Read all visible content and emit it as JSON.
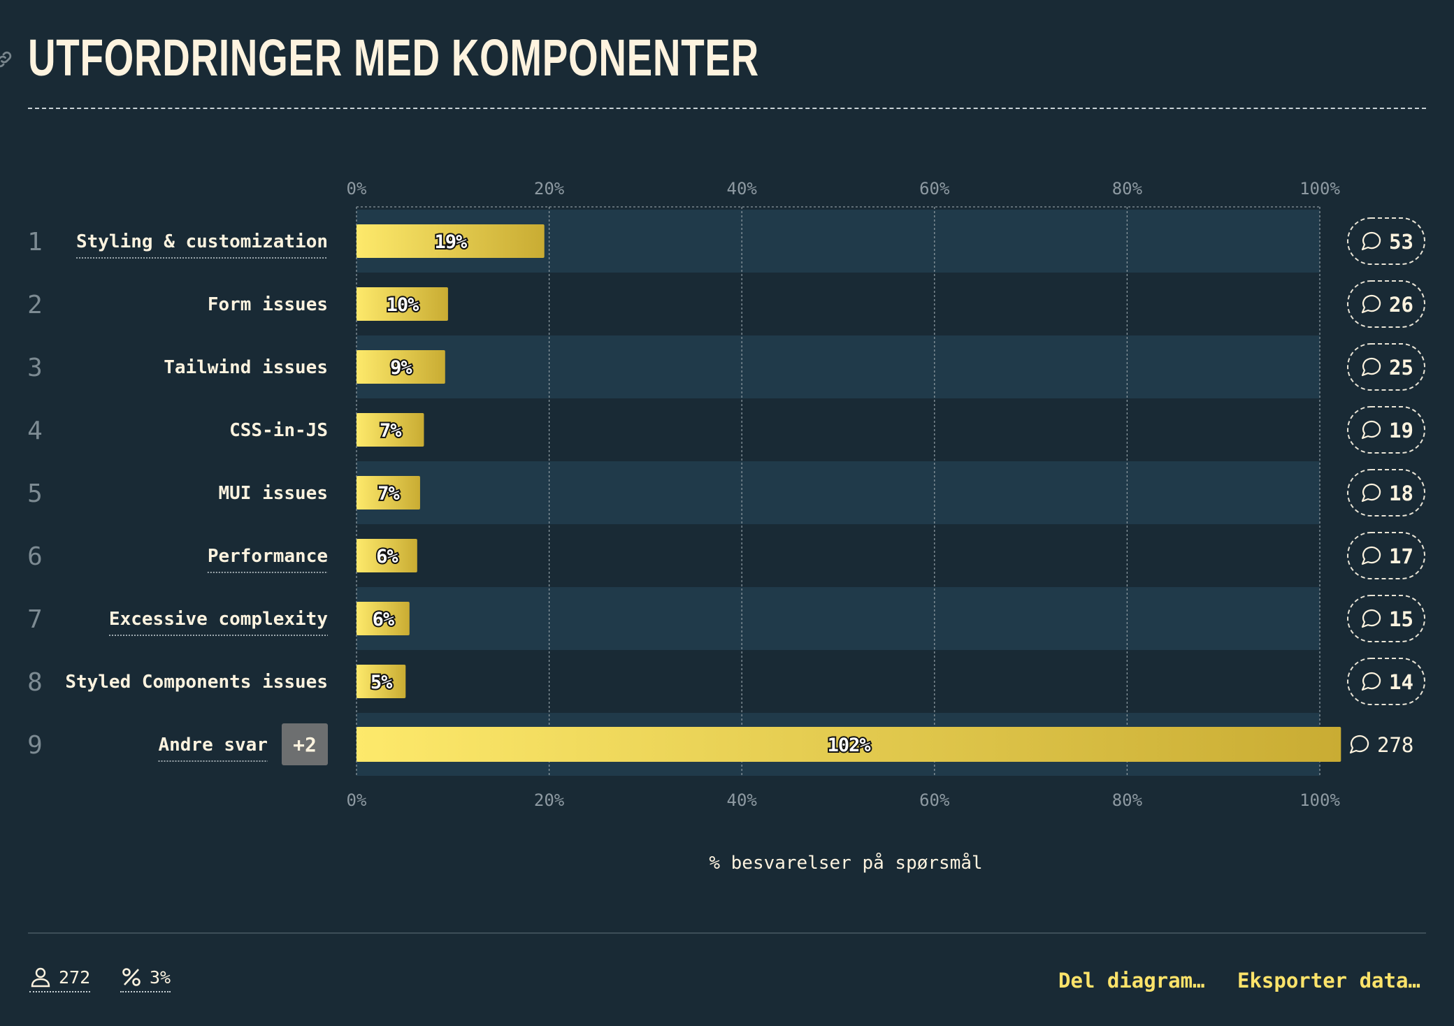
{
  "title": "UTFORDRINGER MED KOMPONENTER",
  "chart_data": {
    "type": "bar",
    "orientation": "horizontal",
    "xlabel": "% besvarelser på spørsmål",
    "xlim": [
      0,
      100
    ],
    "xticks": [
      "0%",
      "20%",
      "40%",
      "60%",
      "80%",
      "100%"
    ],
    "grid": true,
    "rows": [
      {
        "rank": "1",
        "label": "Styling & customization",
        "value": 19.5,
        "value_label": "19%",
        "count": "53",
        "underlined": true
      },
      {
        "rank": "2",
        "label": "Form issues",
        "value": 9.5,
        "value_label": "10%",
        "count": "26",
        "underlined": false
      },
      {
        "rank": "3",
        "label": "Tailwind issues",
        "value": 9.2,
        "value_label": "9%",
        "count": "25",
        "underlined": false
      },
      {
        "rank": "4",
        "label": "CSS-in-JS",
        "value": 7.0,
        "value_label": "7%",
        "count": "19",
        "underlined": false
      },
      {
        "rank": "5",
        "label": "MUI issues",
        "value": 6.6,
        "value_label": "7%",
        "count": "18",
        "underlined": false
      },
      {
        "rank": "6",
        "label": "Performance",
        "value": 6.3,
        "value_label": "6%",
        "count": "17",
        "underlined": true
      },
      {
        "rank": "7",
        "label": "Excessive complexity",
        "value": 5.5,
        "value_label": "6%",
        "count": "15",
        "underlined": true
      },
      {
        "rank": "8",
        "label": "Styled Components issues",
        "value": 5.1,
        "value_label": "5%",
        "count": "14",
        "underlined": false
      },
      {
        "rank": "9",
        "label": "Andre svar",
        "value": 102.2,
        "value_label": "102%",
        "count": "278",
        "underlined": true,
        "badge": "+2"
      }
    ]
  },
  "footer": {
    "respondents": "272",
    "percent": "3%",
    "share_label": "Del diagram…",
    "export_label": "Eksporter data…"
  },
  "colors": {
    "background": "#192a35",
    "row_band": "#203a4a",
    "bar_start": "#fde96b",
    "bar_end": "#c9ac33",
    "accent": "#fde36a"
  }
}
